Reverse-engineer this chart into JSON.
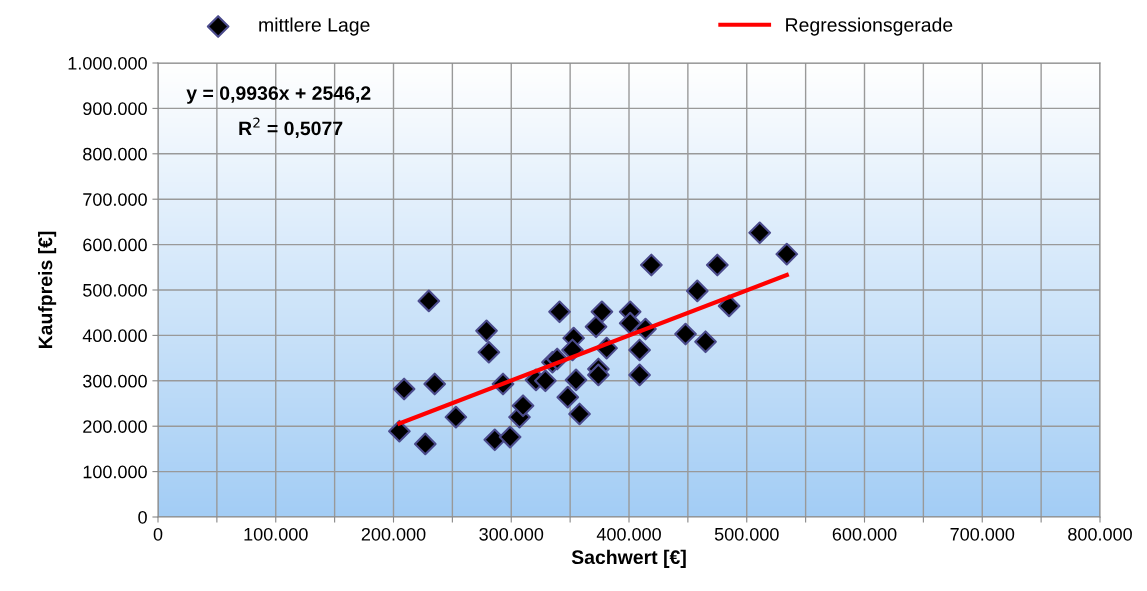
{
  "chart_data": {
    "type": "scatter",
    "xlabel": "Sachwert [€]",
    "ylabel": "Kaufpreis [€]",
    "annotations": [
      "y = 0,9936x + 2546,2",
      "R$^{2}$ = 0,5077"
    ],
    "series": [
      {
        "name": "mittlere Lage",
        "color": "#000000",
        "marker": "diamond",
        "x": [
          205000,
          209000,
          227000,
          230000,
          235000,
          253000,
          279000,
          281000,
          286000,
          293000,
          299000,
          307000,
          310000,
          321000,
          329000,
          335000,
          339000,
          341000,
          353000,
          352000,
          355000,
          348000,
          358000,
          372000,
          377000,
          381000,
          374000,
          374000,
          401000,
          401000,
          409000,
          409000,
          414000,
          419000,
          448000,
          465000,
          458000,
          475000,
          485000,
          511000,
          534000
        ],
        "values": [
          189000,
          282000,
          161000,
          476000,
          293000,
          220000,
          410000,
          363000,
          170000,
          293000,
          176000,
          220000,
          245000,
          302000,
          300000,
          341000,
          348000,
          452000,
          394000,
          368000,
          302000,
          264000,
          227000,
          419000,
          452000,
          372000,
          326000,
          313000,
          452000,
          427000,
          368000,
          313000,
          414000,
          555000,
          403000,
          386000,
          498000,
          555000,
          465000,
          626000,
          579000
        ]
      },
      {
        "name": "Regressionsgerade",
        "type": "line",
        "color": "#ff0000",
        "marker": "none",
        "line_style": "solid",
        "x": [
          205000,
          534000
        ],
        "values": [
          206000,
          533000
        ]
      }
    ],
    "xlim": [
      0,
      800000
    ],
    "ylim": [
      0,
      1000000
    ],
    "xticks": [
      {
        "value": 0,
        "label": "0"
      },
      {
        "value": 50000,
        "label": null
      },
      {
        "value": 100000,
        "label": "100.000"
      },
      {
        "value": 150000,
        "label": null
      },
      {
        "value": 200000,
        "label": "200.000"
      },
      {
        "value": 250000,
        "label": null
      },
      {
        "value": 300000,
        "label": "300.000"
      },
      {
        "value": 350000,
        "label": null
      },
      {
        "value": 400000,
        "label": "400.000"
      },
      {
        "value": 450000,
        "label": null
      },
      {
        "value": 500000,
        "label": "500.000"
      },
      {
        "value": 550000,
        "label": null
      },
      {
        "value": 600000,
        "label": "600.000"
      },
      {
        "value": 650000,
        "label": null
      },
      {
        "value": 700000,
        "label": "700.000"
      },
      {
        "value": 750000,
        "label": null
      },
      {
        "value": 800000,
        "label": "800.000"
      }
    ],
    "yticks": [
      {
        "value": 0,
        "label": "0"
      },
      {
        "value": 100000,
        "label": "100.000"
      },
      {
        "value": 200000,
        "label": "200.000"
      },
      {
        "value": 300000,
        "label": "300.000"
      },
      {
        "value": 400000,
        "label": "400.000"
      },
      {
        "value": 500000,
        "label": "500.000"
      },
      {
        "value": 600000,
        "label": "600.000"
      },
      {
        "value": 700000,
        "label": "700.000"
      },
      {
        "value": 800000,
        "label": "800.000"
      },
      {
        "value": 900000,
        "label": "900.000"
      },
      {
        "value": 1000000,
        "label": "1.000.000"
      }
    ],
    "grid": true,
    "legend": "top"
  }
}
